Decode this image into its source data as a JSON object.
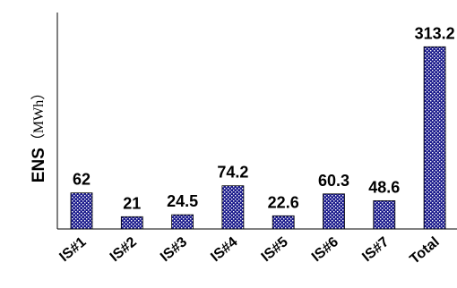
{
  "chart_data": {
    "type": "bar",
    "categories": [
      "IS#1",
      "IS#2",
      "IS#3",
      "IS#4",
      "IS#5",
      "IS#6",
      "IS#7",
      "Total"
    ],
    "values": [
      62,
      21,
      24.5,
      74.2,
      22.6,
      60.3,
      48.6,
      313.2
    ],
    "data_labels": [
      "62",
      "21",
      "24.5",
      "74.2",
      "22.6",
      "60.3",
      "48.6",
      "313.2"
    ],
    "ylabel": "ENS",
    "ylabel_unit": "（MWh）",
    "xlabel": "",
    "title": "",
    "ylim": [
      0,
      380
    ],
    "grid": false,
    "legend": "none",
    "bar_fill": "#1a1a8c",
    "bar_dot": "#ffffff",
    "axis_color": "#000000"
  }
}
